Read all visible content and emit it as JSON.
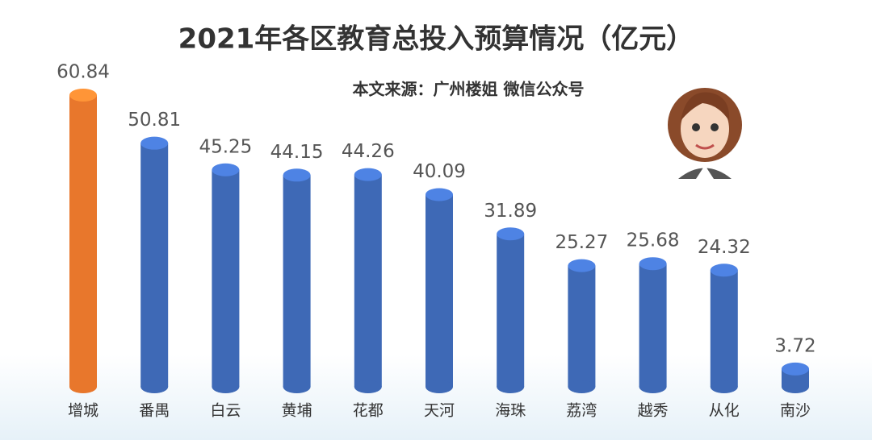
{
  "chart_data": {
    "type": "bar",
    "title": "2021年各区教育总投入预算情况（亿元）",
    "subtitle": "本文来源：广州楼姐 微信公众号",
    "categories": [
      "增城",
      "番禺",
      "白云",
      "黄埔",
      "花都",
      "天河",
      "海珠",
      "荔湾",
      "越秀",
      "从化",
      "南沙"
    ],
    "values": [
      60.84,
      50.81,
      45.25,
      44.15,
      44.26,
      40.09,
      31.89,
      25.27,
      25.68,
      24.32,
      3.72
    ],
    "colors": [
      "#e8772c",
      "#3e69b6",
      "#3e69b6",
      "#3e69b6",
      "#3e69b6",
      "#3e69b6",
      "#3e69b6",
      "#3e69b6",
      "#3e69b6",
      "#3e69b6",
      "#3e69b6"
    ]
  }
}
